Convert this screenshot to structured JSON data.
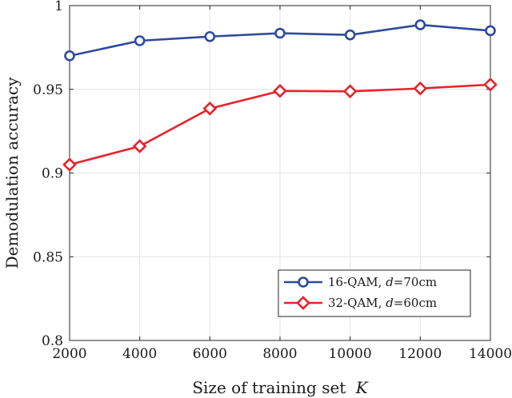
{
  "chart_data": {
    "type": "line",
    "title": "",
    "xlabel": "Size of training set",
    "xlabel_var": "K",
    "ylabel": "Demodulation accuracy",
    "xlim": [
      2000,
      14000
    ],
    "ylim": [
      0.8,
      1.0
    ],
    "xticks": [
      2000,
      4000,
      6000,
      8000,
      10000,
      12000,
      14000
    ],
    "xtick_labels": [
      "2000",
      "4000",
      "6000",
      "8000",
      "10000",
      "12000",
      "14000"
    ],
    "yticks": [
      0.8,
      0.85,
      0.9,
      0.95,
      1.0
    ],
    "ytick_labels": [
      "0.8",
      "0.85",
      "0.9",
      "0.95",
      "1"
    ],
    "grid": true,
    "legend_position": "bottom-right",
    "x": [
      2000,
      4000,
      6000,
      8000,
      10000,
      12000,
      14000
    ],
    "series": [
      {
        "name": "16-QAM, d=70cm",
        "legend_prefix": "16-QAM, ",
        "legend_var": "d",
        "legend_suffix": "=70cm",
        "marker": "circle",
        "color": "#2e4a9e",
        "values": [
          0.97,
          0.979,
          0.9815,
          0.9835,
          0.9825,
          0.9885,
          0.985
        ]
      },
      {
        "name": "32-QAM, d=60cm",
        "legend_prefix": "32-QAM, ",
        "legend_var": "d",
        "legend_suffix": "=60cm",
        "marker": "diamond",
        "color": "#e8222a",
        "values": [
          0.905,
          0.916,
          0.9385,
          0.949,
          0.9488,
          0.9505,
          0.9528
        ]
      }
    ]
  }
}
